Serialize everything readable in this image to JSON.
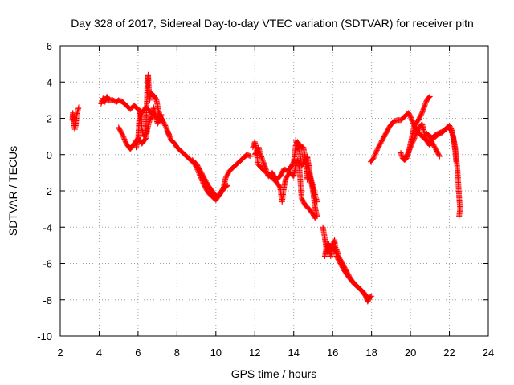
{
  "chart_data": {
    "type": "scatter",
    "title": "Day 328 of 2017, Sidereal Day-to-day VTEC variation (SDTVAR) for receiver pitn",
    "xlabel": "GPS time / hours",
    "ylabel": "SDTVAR / TECUs",
    "xlim": [
      2,
      24
    ],
    "ylim": [
      -10,
      6
    ],
    "xticks": [
      2,
      4,
      6,
      8,
      10,
      12,
      14,
      16,
      18,
      20,
      22,
      24
    ],
    "yticks": [
      -10,
      -8,
      -6,
      -4,
      -2,
      0,
      2,
      4,
      6
    ],
    "grid": true,
    "marker": "+",
    "color": "#ff0000",
    "series": [
      {
        "name": "pitn",
        "segments": [
          [
            [
              2.62,
              1.9
            ],
            [
              2.65,
              2.3
            ],
            [
              2.7,
              1.6
            ],
            [
              2.75,
              1.4
            ],
            [
              2.8,
              1.6
            ],
            [
              2.85,
              2.2
            ],
            [
              2.9,
              2.4
            ],
            [
              2.95,
              2.6
            ]
          ],
          [
            [
              4.1,
              2.8
            ],
            [
              4.2,
              3.1
            ],
            [
              4.3,
              2.9
            ],
            [
              4.4,
              3.2
            ],
            [
              4.5,
              3.0
            ],
            [
              4.7,
              3.0
            ],
            [
              4.9,
              2.9
            ],
            [
              5.0,
              3.0
            ],
            [
              5.2,
              2.9
            ],
            [
              5.4,
              2.7
            ],
            [
              5.6,
              2.5
            ],
            [
              5.8,
              2.7
            ],
            [
              6.0,
              2.5
            ],
            [
              6.2,
              2.3
            ],
            [
              6.4,
              2.6
            ],
            [
              6.6,
              2.4
            ],
            [
              6.8,
              2.2
            ],
            [
              7.0,
              2.0
            ],
            [
              7.2,
              2.0
            ],
            [
              7.4,
              1.6
            ],
            [
              7.6,
              1.1
            ]
          ],
          [
            [
              5.0,
              1.5
            ],
            [
              5.2,
              1.1
            ],
            [
              5.4,
              0.6
            ],
            [
              5.6,
              0.3
            ],
            [
              5.8,
              0.6
            ],
            [
              6.0,
              0.9
            ],
            [
              6.2,
              0.6
            ],
            [
              6.4,
              0.9
            ],
            [
              6.5,
              1.5
            ],
            [
              6.6,
              1.9
            ],
            [
              6.7,
              2.1
            ],
            [
              6.8,
              2.6
            ],
            [
              6.9,
              2.2
            ],
            [
              7.0,
              1.7
            ],
            [
              7.1,
              1.9
            ],
            [
              7.2,
              2.2
            ]
          ],
          [
            [
              5.9,
              0.4
            ],
            [
              6.0,
              0.8
            ],
            [
              6.05,
              1.8
            ],
            [
              6.1,
              2.4
            ],
            [
              6.15,
              2.1
            ],
            [
              6.2,
              1.4
            ],
            [
              6.3,
              1.0
            ],
            [
              6.4,
              1.2
            ],
            [
              6.48,
              3.9
            ],
            [
              6.52,
              4.4
            ],
            [
              6.56,
              3.6
            ],
            [
              6.6,
              3.0
            ],
            [
              6.65,
              3.4
            ],
            [
              6.75,
              3.3
            ],
            [
              6.85,
              3.2
            ],
            [
              6.95,
              3.0
            ],
            [
              7.05,
              2.4
            ],
            [
              7.15,
              2.1
            ],
            [
              7.25,
              1.9
            ]
          ],
          [
            [
              7.5,
              1.3
            ],
            [
              7.7,
              0.8
            ],
            [
              7.9,
              0.6
            ],
            [
              8.0,
              0.4
            ],
            [
              8.2,
              0.2
            ],
            [
              8.4,
              0.0
            ],
            [
              8.6,
              -0.2
            ],
            [
              8.8,
              -0.4
            ],
            [
              9.0,
              -0.5
            ],
            [
              9.2,
              -0.9
            ],
            [
              9.4,
              -1.3
            ],
            [
              9.6,
              -1.7
            ],
            [
              9.8,
              -2.0
            ],
            [
              10.0,
              -2.3
            ],
            [
              10.2,
              -2.2
            ],
            [
              10.4,
              -1.9
            ],
            [
              10.6,
              -1.7
            ]
          ],
          [
            [
              8.8,
              -0.3
            ],
            [
              9.0,
              -0.7
            ],
            [
              9.2,
              -1.2
            ],
            [
              9.4,
              -1.7
            ],
            [
              9.6,
              -2.1
            ],
            [
              9.8,
              -2.3
            ],
            [
              10.0,
              -2.5
            ],
            [
              10.2,
              -2.2
            ],
            [
              10.4,
              -1.8
            ],
            [
              10.5,
              -1.3
            ],
            [
              10.7,
              -0.9
            ],
            [
              10.9,
              -0.7
            ],
            [
              11.1,
              -0.5
            ],
            [
              11.3,
              -0.3
            ],
            [
              11.5,
              -0.1
            ],
            [
              11.6,
              0.0
            ],
            [
              11.8,
              -0.1
            ]
          ],
          [
            [
              11.9,
              0.4
            ],
            [
              12.0,
              0.7
            ],
            [
              12.1,
              0.3
            ],
            [
              12.15,
              -0.5
            ],
            [
              12.3,
              -0.7
            ],
            [
              12.5,
              -0.9
            ],
            [
              12.7,
              -1.1
            ],
            [
              12.9,
              -1.3
            ],
            [
              13.1,
              -1.5
            ],
            [
              13.3,
              -1.8
            ],
            [
              13.4,
              -2.6
            ],
            [
              13.5,
              -1.8
            ],
            [
              13.6,
              -1.3
            ],
            [
              13.8,
              -1.0
            ],
            [
              14.0,
              -1.2
            ],
            [
              14.1,
              -0.6
            ],
            [
              14.2,
              -0.3
            ],
            [
              14.3,
              -0.8
            ],
            [
              14.4,
              -2.4
            ],
            [
              14.6,
              -2.8
            ],
            [
              14.8,
              -3.0
            ],
            [
              15.0,
              -3.3
            ],
            [
              15.1,
              -3.5
            ]
          ],
          [
            [
              12.0,
              0.0
            ],
            [
              12.2,
              0.4
            ],
            [
              12.3,
              0.0
            ],
            [
              12.5,
              -0.6
            ],
            [
              12.7,
              -1.2
            ],
            [
              12.9,
              -1.0
            ],
            [
              13.1,
              -1.4
            ],
            [
              13.3,
              -1.2
            ],
            [
              13.5,
              -0.8
            ],
            [
              13.7,
              -0.9
            ],
            [
              13.9,
              -0.6
            ],
            [
              14.0,
              -0.4
            ],
            [
              14.1,
              0.5
            ],
            [
              14.2,
              0.7
            ],
            [
              14.3,
              0.5
            ],
            [
              14.5,
              0.4
            ],
            [
              14.6,
              -0.3
            ],
            [
              14.7,
              -1.4
            ],
            [
              14.8,
              -1.0
            ],
            [
              15.0,
              -1.8
            ],
            [
              15.1,
              -2.2
            ],
            [
              15.2,
              -2.6
            ]
          ],
          [
            [
              14.1,
              0.8
            ],
            [
              14.3,
              0.2
            ],
            [
              14.4,
              -0.6
            ],
            [
              14.6,
              -0.4
            ],
            [
              14.7,
              -0.1
            ],
            [
              14.8,
              -0.8
            ],
            [
              14.9,
              -1.5
            ],
            [
              15.0,
              -2.1
            ],
            [
              15.1,
              -2.9
            ],
            [
              15.2,
              -3.4
            ]
          ],
          [
            [
              15.5,
              -4.0
            ],
            [
              15.6,
              -4.6
            ],
            [
              15.7,
              -5.4
            ],
            [
              15.8,
              -5.1
            ],
            [
              15.9,
              -5.6
            ],
            [
              16.0,
              -5.0
            ],
            [
              16.1,
              -4.7
            ],
            [
              16.2,
              -5.6
            ],
            [
              16.4,
              -6.0
            ],
            [
              16.6,
              -6.4
            ],
            [
              16.8,
              -6.7
            ],
            [
              17.0,
              -7.0
            ],
            [
              17.2,
              -7.2
            ],
            [
              17.4,
              -7.4
            ],
            [
              17.6,
              -7.6
            ],
            [
              17.8,
              -7.9
            ],
            [
              18.0,
              -7.8
            ]
          ],
          [
            [
              15.6,
              -5.6
            ],
            [
              15.7,
              -5.0
            ],
            [
              15.8,
              -4.9
            ],
            [
              15.9,
              -5.3
            ],
            [
              16.0,
              -5.1
            ],
            [
              16.1,
              -5.3
            ],
            [
              16.2,
              -5.2
            ],
            [
              16.3,
              -5.6
            ],
            [
              16.5,
              -6.0
            ],
            [
              16.7,
              -6.4
            ],
            [
              16.9,
              -6.8
            ],
            [
              17.1,
              -7.1
            ],
            [
              17.3,
              -7.3
            ],
            [
              17.5,
              -7.5
            ],
            [
              17.7,
              -7.8
            ],
            [
              17.8,
              -8.1
            ],
            [
              17.9,
              -7.9
            ]
          ],
          [
            [
              17.95,
              -0.4
            ],
            [
              18.1,
              -0.2
            ],
            [
              18.3,
              0.3
            ],
            [
              18.5,
              0.7
            ],
            [
              18.7,
              1.1
            ],
            [
              18.9,
              1.5
            ],
            [
              19.1,
              1.8
            ],
            [
              19.3,
              1.9
            ],
            [
              19.5,
              1.9
            ],
            [
              19.7,
              2.1
            ],
            [
              19.9,
              2.3
            ],
            [
              20.0,
              2.1
            ],
            [
              20.1,
              1.8
            ],
            [
              20.3,
              1.4
            ],
            [
              20.5,
              1.1
            ],
            [
              20.7,
              0.9
            ],
            [
              20.9,
              0.8
            ],
            [
              21.1,
              0.7
            ],
            [
              21.3,
              0.3
            ],
            [
              21.5,
              -0.1
            ]
          ],
          [
            [
              19.5,
              0.1
            ],
            [
              19.6,
              -0.2
            ],
            [
              19.7,
              -0.3
            ],
            [
              19.8,
              -0.2
            ],
            [
              19.9,
              0.1
            ],
            [
              20.0,
              0.6
            ],
            [
              20.1,
              1.1
            ],
            [
              20.2,
              1.6
            ],
            [
              20.4,
              1.9
            ],
            [
              20.6,
              2.3
            ],
            [
              20.8,
              2.9
            ],
            [
              20.9,
              3.1
            ],
            [
              21.0,
              3.2
            ]
          ],
          [
            [
              19.8,
              -0.1
            ],
            [
              20.0,
              0.4
            ],
            [
              20.2,
              0.9
            ],
            [
              20.4,
              1.4
            ],
            [
              20.6,
              1.7
            ],
            [
              20.8,
              0.8
            ],
            [
              21.0,
              0.5
            ],
            [
              21.1,
              0.9
            ],
            [
              21.3,
              1.1
            ],
            [
              21.5,
              1.2
            ],
            [
              21.7,
              1.3
            ],
            [
              21.9,
              1.5
            ],
            [
              22.1,
              1.4
            ],
            [
              22.2,
              1.0
            ],
            [
              22.3,
              0.4
            ],
            [
              22.4,
              -0.6
            ],
            [
              22.45,
              -1.4
            ],
            [
              22.5,
              -2.3
            ],
            [
              22.55,
              -3.0
            ],
            [
              22.5,
              -3.4
            ]
          ],
          [
            [
              20.8,
              1.2
            ],
            [
              21.0,
              1.0
            ],
            [
              21.2,
              0.9
            ],
            [
              21.4,
              1.1
            ],
            [
              21.6,
              1.2
            ],
            [
              21.8,
              1.4
            ],
            [
              22.0,
              1.6
            ],
            [
              22.1,
              1.4
            ],
            [
              22.2,
              0.9
            ],
            [
              22.3,
              0.2
            ],
            [
              22.35,
              -0.4
            ]
          ]
        ]
      }
    ]
  }
}
